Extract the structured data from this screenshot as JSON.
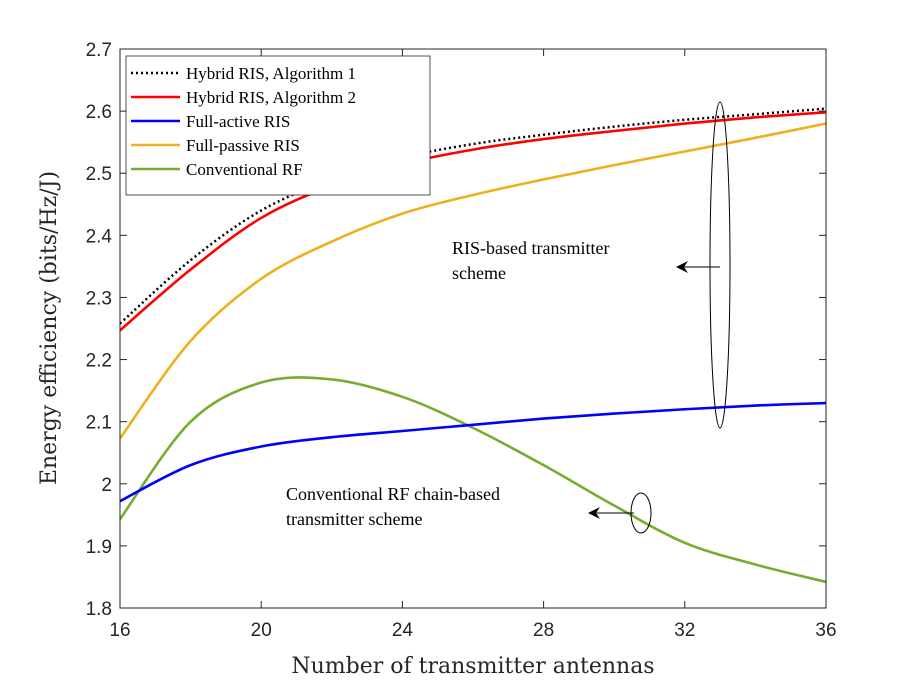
{
  "chart_data": {
    "type": "line",
    "title": "",
    "xlabel": "Number of transmitter antennas",
    "ylabel": "Energy efficiency (bits/Hz/J)",
    "xlim": [
      16,
      36
    ],
    "ylim": [
      1.8,
      2.7
    ],
    "xticks": [
      16,
      20,
      24,
      28,
      32,
      36
    ],
    "yticks": [
      1.8,
      1.9,
      2,
      2.1,
      2.2,
      2.3,
      2.4,
      2.5,
      2.6,
      2.7
    ],
    "ytick_labels": [
      "1.8",
      "1.9",
      "2",
      "2.1",
      "2.2",
      "2.3",
      "2.4",
      "2.5",
      "2.6",
      "2.7"
    ],
    "grid": false,
    "legend_position": "top-left",
    "x": [
      16,
      18,
      20,
      22,
      24,
      26,
      28,
      30,
      32,
      34,
      36
    ],
    "series": [
      {
        "name": "Hybrid RIS, Algorithm 1",
        "color": "#000000",
        "style": "dotted",
        "values": [
          2.258,
          2.36,
          2.44,
          2.49,
          2.525,
          2.547,
          2.562,
          2.575,
          2.586,
          2.595,
          2.604
        ]
      },
      {
        "name": "Hybrid RIS, Algorithm 2",
        "color": "#ff0000",
        "style": "solid",
        "values": [
          2.247,
          2.345,
          2.428,
          2.48,
          2.515,
          2.538,
          2.555,
          2.568,
          2.58,
          2.59,
          2.598
        ]
      },
      {
        "name": "Full-active RIS",
        "color": "#0000ff",
        "style": "solid",
        "values": [
          1.972,
          2.03,
          2.06,
          2.075,
          2.085,
          2.095,
          2.105,
          2.113,
          2.12,
          2.126,
          2.13
        ]
      },
      {
        "name": "Full-passive RIS",
        "color": "#edb120",
        "style": "solid",
        "values": [
          2.073,
          2.23,
          2.33,
          2.39,
          2.435,
          2.465,
          2.49,
          2.513,
          2.535,
          2.557,
          2.58
        ]
      },
      {
        "name": "Conventional RF",
        "color": "#77ac30",
        "style": "solid",
        "values": [
          1.943,
          2.1,
          2.163,
          2.168,
          2.14,
          2.09,
          2.03,
          1.965,
          1.905,
          1.87,
          1.842
        ]
      }
    ],
    "annotations": [
      {
        "lines": [
          "RIS-based transmitter",
          "scheme"
        ]
      },
      {
        "lines": [
          "Conventional RF chain-based",
          "transmitter scheme"
        ]
      }
    ]
  }
}
